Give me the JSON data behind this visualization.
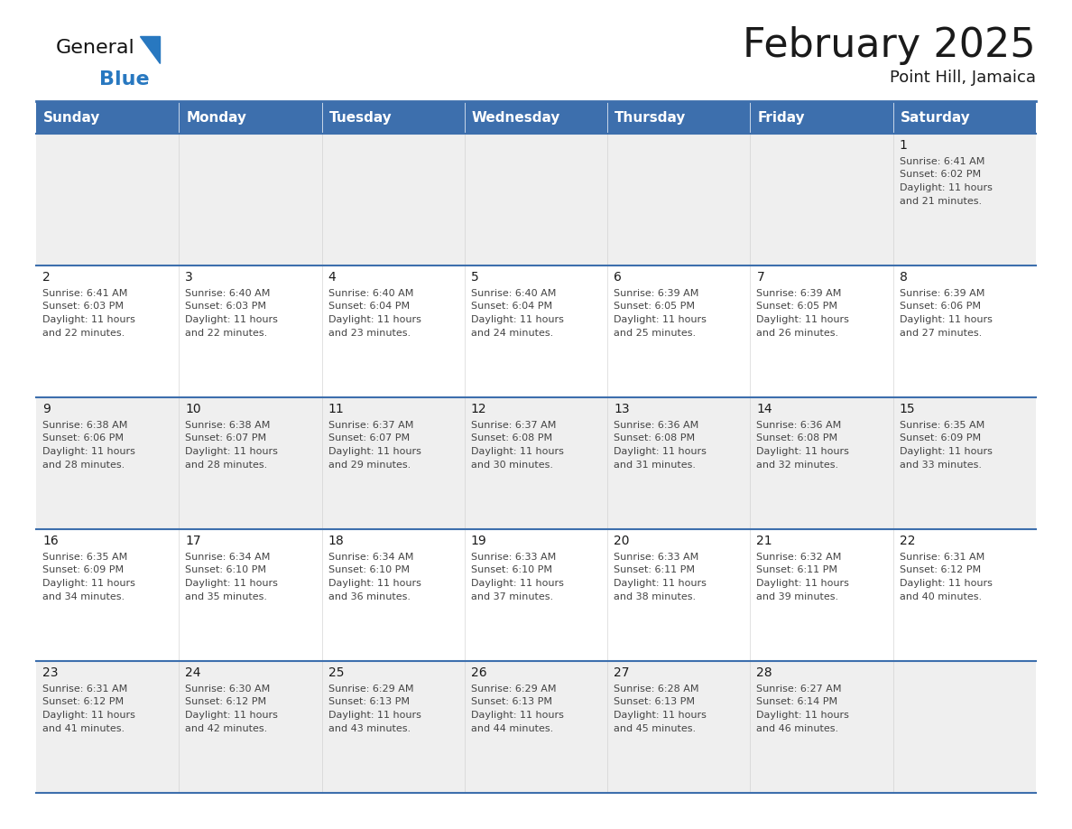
{
  "title": "February 2025",
  "subtitle": "Point Hill, Jamaica",
  "header_color": "#3d6fad",
  "header_text_color": "#FFFFFF",
  "cell_bg_row0": "#EFEFEF",
  "cell_bg_row1": "#FFFFFF",
  "cell_bg_row2": "#EFEFEF",
  "cell_bg_row3": "#FFFFFF",
  "cell_bg_row4": "#EFEFEF",
  "border_color": "#3d6fad",
  "text_color": "#1a1a1a",
  "cell_text_color": "#444444",
  "day_names": [
    "Sunday",
    "Monday",
    "Tuesday",
    "Wednesday",
    "Thursday",
    "Friday",
    "Saturday"
  ],
  "logo_text1": "General",
  "logo_text2": "Blue",
  "logo_color1": "#111111",
  "logo_color2": "#2878C0",
  "title_fontsize": 32,
  "subtitle_fontsize": 13,
  "header_fontsize": 11,
  "day_num_fontsize": 10,
  "cell_text_fontsize": 8,
  "calendar_data": [
    [
      null,
      null,
      null,
      null,
      null,
      null,
      {
        "day": 1,
        "sunrise": "6:41 AM",
        "sunset": "6:02 PM",
        "daylight": "11 hours and 21 minutes."
      }
    ],
    [
      {
        "day": 2,
        "sunrise": "6:41 AM",
        "sunset": "6:03 PM",
        "daylight": "11 hours and 22 minutes."
      },
      {
        "day": 3,
        "sunrise": "6:40 AM",
        "sunset": "6:03 PM",
        "daylight": "11 hours and 22 minutes."
      },
      {
        "day": 4,
        "sunrise": "6:40 AM",
        "sunset": "6:04 PM",
        "daylight": "11 hours and 23 minutes."
      },
      {
        "day": 5,
        "sunrise": "6:40 AM",
        "sunset": "6:04 PM",
        "daylight": "11 hours and 24 minutes."
      },
      {
        "day": 6,
        "sunrise": "6:39 AM",
        "sunset": "6:05 PM",
        "daylight": "11 hours and 25 minutes."
      },
      {
        "day": 7,
        "sunrise": "6:39 AM",
        "sunset": "6:05 PM",
        "daylight": "11 hours and 26 minutes."
      },
      {
        "day": 8,
        "sunrise": "6:39 AM",
        "sunset": "6:06 PM",
        "daylight": "11 hours and 27 minutes."
      }
    ],
    [
      {
        "day": 9,
        "sunrise": "6:38 AM",
        "sunset": "6:06 PM",
        "daylight": "11 hours and 28 minutes."
      },
      {
        "day": 10,
        "sunrise": "6:38 AM",
        "sunset": "6:07 PM",
        "daylight": "11 hours and 28 minutes."
      },
      {
        "day": 11,
        "sunrise": "6:37 AM",
        "sunset": "6:07 PM",
        "daylight": "11 hours and 29 minutes."
      },
      {
        "day": 12,
        "sunrise": "6:37 AM",
        "sunset": "6:08 PM",
        "daylight": "11 hours and 30 minutes."
      },
      {
        "day": 13,
        "sunrise": "6:36 AM",
        "sunset": "6:08 PM",
        "daylight": "11 hours and 31 minutes."
      },
      {
        "day": 14,
        "sunrise": "6:36 AM",
        "sunset": "6:08 PM",
        "daylight": "11 hours and 32 minutes."
      },
      {
        "day": 15,
        "sunrise": "6:35 AM",
        "sunset": "6:09 PM",
        "daylight": "11 hours and 33 minutes."
      }
    ],
    [
      {
        "day": 16,
        "sunrise": "6:35 AM",
        "sunset": "6:09 PM",
        "daylight": "11 hours and 34 minutes."
      },
      {
        "day": 17,
        "sunrise": "6:34 AM",
        "sunset": "6:10 PM",
        "daylight": "11 hours and 35 minutes."
      },
      {
        "day": 18,
        "sunrise": "6:34 AM",
        "sunset": "6:10 PM",
        "daylight": "11 hours and 36 minutes."
      },
      {
        "day": 19,
        "sunrise": "6:33 AM",
        "sunset": "6:10 PM",
        "daylight": "11 hours and 37 minutes."
      },
      {
        "day": 20,
        "sunrise": "6:33 AM",
        "sunset": "6:11 PM",
        "daylight": "11 hours and 38 minutes."
      },
      {
        "day": 21,
        "sunrise": "6:32 AM",
        "sunset": "6:11 PM",
        "daylight": "11 hours and 39 minutes."
      },
      {
        "day": 22,
        "sunrise": "6:31 AM",
        "sunset": "6:12 PM",
        "daylight": "11 hours and 40 minutes."
      }
    ],
    [
      {
        "day": 23,
        "sunrise": "6:31 AM",
        "sunset": "6:12 PM",
        "daylight": "11 hours and 41 minutes."
      },
      {
        "day": 24,
        "sunrise": "6:30 AM",
        "sunset": "6:12 PM",
        "daylight": "11 hours and 42 minutes."
      },
      {
        "day": 25,
        "sunrise": "6:29 AM",
        "sunset": "6:13 PM",
        "daylight": "11 hours and 43 minutes."
      },
      {
        "day": 26,
        "sunrise": "6:29 AM",
        "sunset": "6:13 PM",
        "daylight": "11 hours and 44 minutes."
      },
      {
        "day": 27,
        "sunrise": "6:28 AM",
        "sunset": "6:13 PM",
        "daylight": "11 hours and 45 minutes."
      },
      {
        "day": 28,
        "sunrise": "6:27 AM",
        "sunset": "6:14 PM",
        "daylight": "11 hours and 46 minutes."
      },
      null
    ]
  ]
}
